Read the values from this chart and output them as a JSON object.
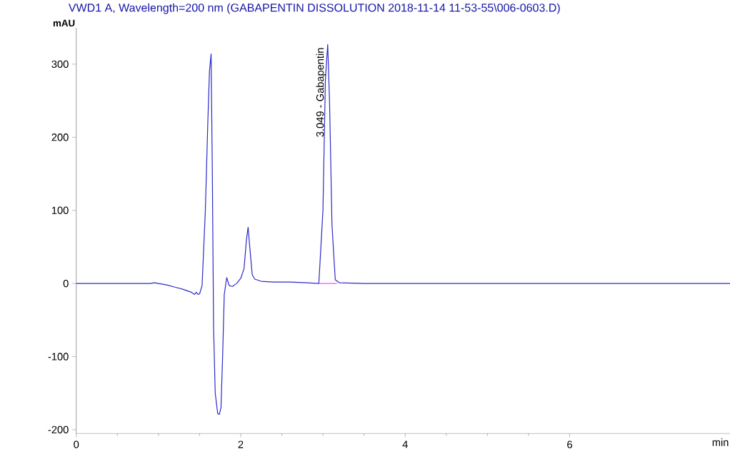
{
  "chart_data": {
    "type": "line",
    "title": "VWD1 A, Wavelength=200 nm (GABAPENTIN  DISSOLUTION 2018-11-14 11-53-55\\006-0603.D)",
    "xlabel": "min",
    "ylabel": "mAU",
    "xlim": [
      0,
      7.95
    ],
    "ylim": [
      -205,
      350
    ],
    "xticks": [
      0,
      2,
      4,
      6
    ],
    "yticks": [
      -200,
      -100,
      0,
      100,
      200,
      300
    ],
    "series": [
      {
        "color": "#2b2bc8",
        "x": [
          0,
          0.5,
          0.9,
          0.95,
          1.0,
          1.1,
          1.2,
          1.3,
          1.4,
          1.44,
          1.46,
          1.48,
          1.5,
          1.53,
          1.57,
          1.6,
          1.62,
          1.64,
          1.655,
          1.67,
          1.69,
          1.72,
          1.74,
          1.76,
          1.78,
          1.8,
          1.83,
          1.86,
          1.9,
          1.95,
          2.0,
          2.04,
          2.07,
          2.09,
          2.11,
          2.14,
          2.17,
          2.25,
          2.4,
          2.6,
          2.8,
          2.95,
          3.0,
          3.03,
          3.058,
          3.08,
          3.11,
          3.15,
          3.2,
          3.5,
          4,
          5,
          6,
          7,
          7.95
        ],
        "values": [
          0,
          0,
          0,
          1,
          0,
          -2,
          -5,
          -8,
          -12,
          -15,
          -12,
          -15,
          -14,
          -3,
          100,
          220,
          290,
          314,
          150,
          -60,
          -150,
          -178,
          -179,
          -170,
          -100,
          -15,
          8,
          -3,
          -4,
          0,
          7,
          20,
          60,
          77,
          50,
          12,
          6,
          3,
          2,
          2,
          1,
          0,
          100,
          280,
          327,
          250,
          80,
          5,
          1,
          0,
          0,
          0,
          0,
          0,
          0
        ]
      },
      {
        "color": "#ff40ff",
        "x": [
          2.95,
          3.17
        ],
        "values": [
          0,
          0
        ]
      }
    ],
    "annotations": [
      {
        "text": "3.049 -  Gabapentin",
        "x": 3.049,
        "y": 327
      }
    ]
  }
}
